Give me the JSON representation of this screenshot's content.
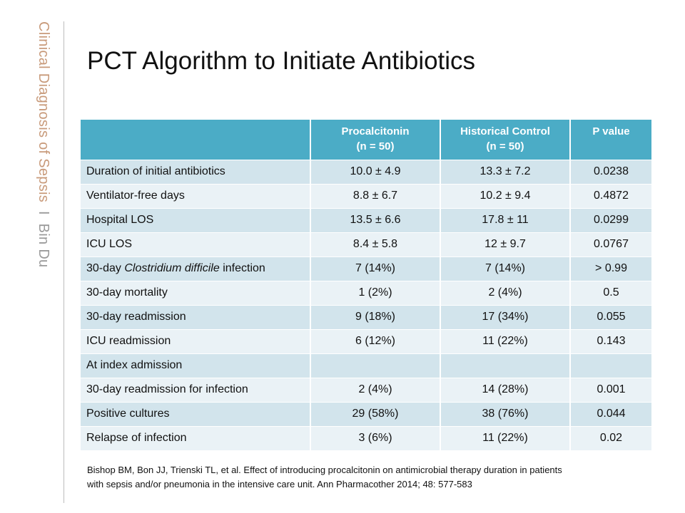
{
  "sidebar": {
    "title": "Clinical Diagnosis of Sepsis",
    "separator": "I",
    "author": "Bin Du"
  },
  "slide": {
    "title": "PCT Algorithm to Initiate Antibiotics"
  },
  "table": {
    "headers": [
      {
        "line1": "",
        "line2": ""
      },
      {
        "line1": "Procalcitonin",
        "line2": "(n = 50)"
      },
      {
        "line1": "Historical Control",
        "line2": "(n = 50)"
      },
      {
        "line1": "P value",
        "line2": ""
      }
    ],
    "rows": [
      {
        "label_pre": "Duration of initial antibiotics",
        "label_em": "",
        "label_post": "",
        "pct": "10.0 ± 4.9",
        "control": "13.3 ± 7.2",
        "p": "0.0238"
      },
      {
        "label_pre": "Ventilator-free days",
        "label_em": "",
        "label_post": "",
        "pct": "8.8 ± 6.7",
        "control": "10.2 ± 9.4",
        "p": "0.4872"
      },
      {
        "label_pre": "Hospital LOS",
        "label_em": "",
        "label_post": "",
        "pct": "13.5 ± 6.6",
        "control": "17.8 ± 11",
        "p": "0.0299"
      },
      {
        "label_pre": "ICU LOS",
        "label_em": "",
        "label_post": "",
        "pct": "8.4 ± 5.8",
        "control": "12 ± 9.7",
        "p": "0.0767"
      },
      {
        "label_pre": "30-day ",
        "label_em": "Clostridium difficile",
        "label_post": " infection",
        "pct": "7 (14%)",
        "control": "7 (14%)",
        "p": "> 0.99"
      },
      {
        "label_pre": "30-day mortality",
        "label_em": "",
        "label_post": "",
        "pct": "1 (2%)",
        "control": "2 (4%)",
        "p": "0.5"
      },
      {
        "label_pre": "30-day readmission",
        "label_em": "",
        "label_post": "",
        "pct": "9 (18%)",
        "control": "17 (34%)",
        "p": "0.055"
      },
      {
        "label_pre": "ICU readmission",
        "label_em": "",
        "label_post": "",
        "pct": "6 (12%)",
        "control": "11 (22%)",
        "p": "0.143"
      },
      {
        "label_pre": "At index admission",
        "label_em": "",
        "label_post": "",
        "pct": "",
        "control": "",
        "p": ""
      },
      {
        "label_pre": "30-day readmission for infection",
        "label_em": "",
        "label_post": "",
        "pct": "2 (4%)",
        "control": "14 (28%)",
        "p": "0.001"
      },
      {
        "label_pre": "Positive cultures",
        "label_em": "",
        "label_post": "",
        "pct": "29 (58%)",
        "control": "38 (76%)",
        "p": "0.044"
      },
      {
        "label_pre": "Relapse of infection",
        "label_em": "",
        "label_post": "",
        "pct": "3 (6%)",
        "control": "11 (22%)",
        "p": "0.02"
      }
    ]
  },
  "citation": {
    "line1": "Bishop BM, Bon JJ, Trienski TL, et al. Effect of introducing procalcitonin on antimicrobial therapy duration in patients",
    "line2": "with sepsis and/or pneumonia in the intensive care unit. Ann Pharmacother 2014; 48: 577-583"
  }
}
